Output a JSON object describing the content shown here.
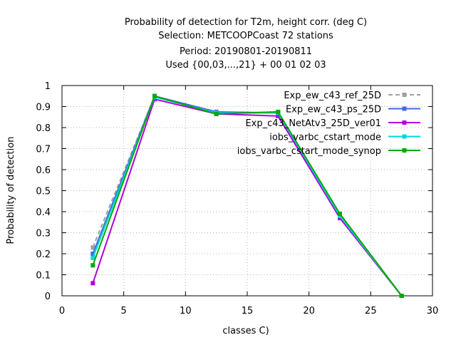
{
  "chart_data": {
    "type": "line",
    "title_lines": [
      "Probability of detection  for T2m, height corr. (deg C)",
      "Selection: METCOOPCoast     72 stations",
      "Period: 20190801-20190811",
      "Used {00,03,...,21} + 00 01 02 03"
    ],
    "xlabel": "classes C)",
    "ylabel": "Probability of detection",
    "xlim": [
      0,
      30
    ],
    "ylim": [
      0,
      1
    ],
    "xticks": [
      "0",
      "5",
      "10",
      "15",
      "20",
      "25",
      "30"
    ],
    "yticks": [
      "0",
      "0.1",
      "0.2",
      "0.3",
      "0.4",
      "0.5",
      "0.6",
      "0.7",
      "0.8",
      "0.9",
      "1"
    ],
    "grid": true,
    "legend_position": "top-right",
    "x": [
      2.5,
      7.5,
      12.5,
      17.5,
      22.5,
      27.5
    ],
    "series": [
      {
        "name": "Exp_ew_c43_ref_25D",
        "color": "#a0a0a0",
        "dashed": true,
        "values": [
          0.23,
          0.95,
          0.87,
          0.87,
          0.37,
          0.0
        ]
      },
      {
        "name": "Exp_ew_c43_ps_25D",
        "color": "#4169e1",
        "dashed": false,
        "values": [
          0.2,
          0.95,
          0.875,
          0.87,
          0.375,
          0.0
        ]
      },
      {
        "name": "Exp_c43_NetAtv3_25D_ver01",
        "color": "#b000e0",
        "dashed": false,
        "values": [
          0.06,
          0.935,
          0.865,
          0.855,
          0.37,
          0.0
        ]
      },
      {
        "name": "iobs_varbc_cstart_mode",
        "color": "#00d8d8",
        "dashed": false,
        "values": [
          0.18,
          0.945,
          0.87,
          0.87,
          0.38,
          0.0
        ]
      },
      {
        "name": "iobs_varbc_cstart_mode_synop",
        "color": "#00aa00",
        "dashed": false,
        "values": [
          0.145,
          0.95,
          0.865,
          0.875,
          0.39,
          0.0
        ]
      }
    ]
  }
}
